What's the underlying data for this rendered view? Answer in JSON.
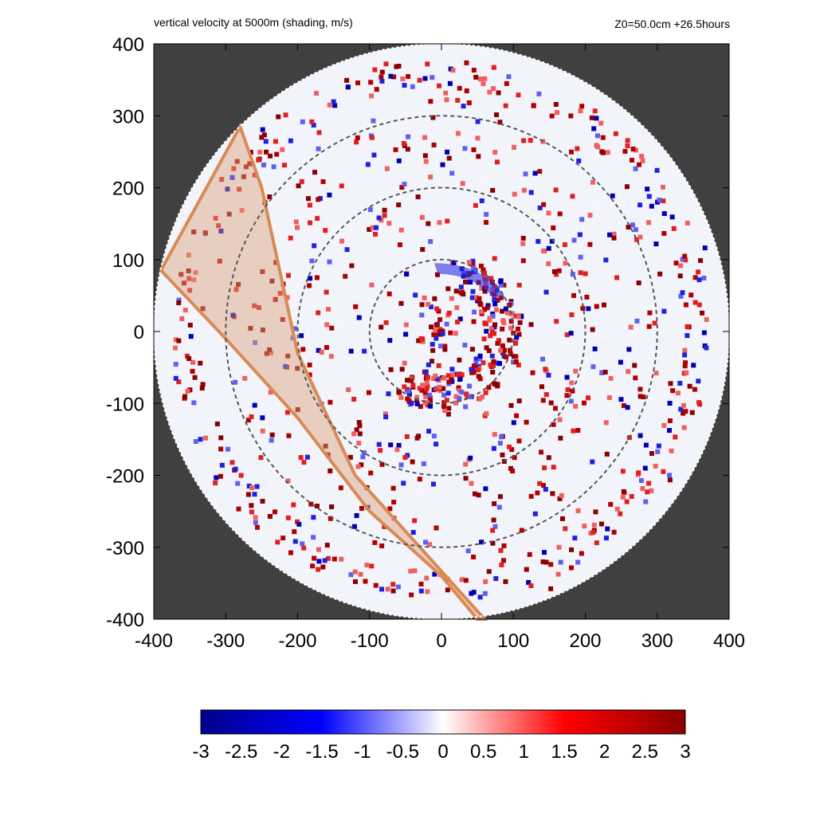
{
  "chart_data": {
    "type": "heatmap",
    "title": "vertical velocity at 5000m (shading, m/s)",
    "subtitle": "Z0=50.0cm  +26.5hours",
    "xlim": [
      -400,
      400
    ],
    "ylim": [
      -400,
      400
    ],
    "x_ticks": [
      -400,
      -300,
      -200,
      -100,
      0,
      100,
      200,
      300,
      400
    ],
    "y_ticks": [
      -400,
      -300,
      -200,
      -100,
      0,
      100,
      200,
      300,
      400
    ],
    "domain_radius": 400,
    "range_rings": [
      100,
      200,
      300
    ],
    "colorbar": {
      "min": -3,
      "max": 3,
      "ticks": [
        "-3",
        "-2.5",
        "-2",
        "-1.5",
        "-1",
        "-0.5",
        "0",
        "0.5",
        "1",
        "1.5",
        "2",
        "2.5",
        "3"
      ],
      "colors": [
        "#00008b",
        "#0000ff",
        "#ffffff",
        "#ff0000",
        "#8b0000"
      ]
    },
    "shaded_sector": {
      "color": "#d9a07a",
      "inner_edge": [
        [
          -280,
          285
        ],
        [
          -250,
          200
        ],
        [
          -200,
          -30
        ],
        [
          -120,
          -200
        ],
        [
          -30,
          -300
        ],
        [
          60,
          -400
        ]
      ],
      "outer_edge": [
        [
          -390,
          85
        ],
        [
          -300,
          -10
        ],
        [
          -200,
          -120
        ],
        [
          -100,
          -250
        ],
        [
          0,
          -340
        ],
        [
          50,
          -400
        ]
      ]
    },
    "background_color": "#404040"
  }
}
